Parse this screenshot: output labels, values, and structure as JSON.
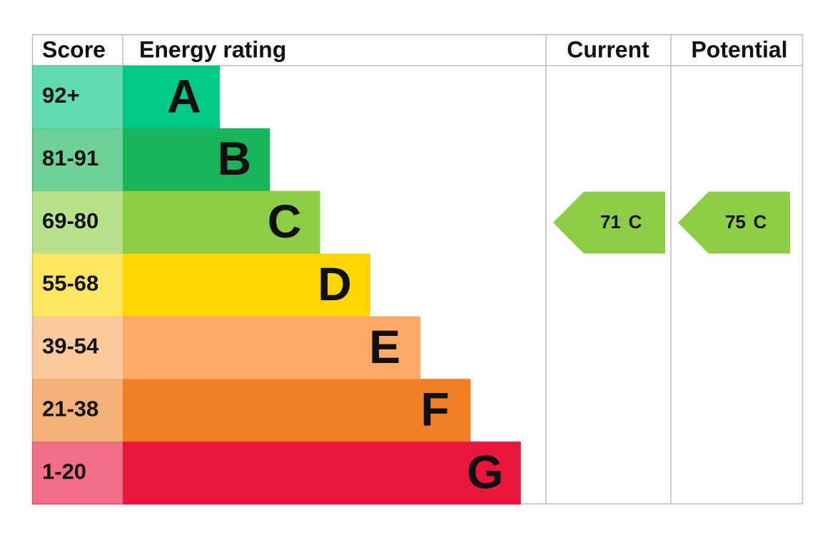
{
  "header": {
    "score": "Score",
    "energy_rating": "Energy rating",
    "current": "Current",
    "potential": "Potential"
  },
  "rows": [
    {
      "score": "92+",
      "rating": "A",
      "color": "#00c781"
    },
    {
      "score": "81-91",
      "rating": "B",
      "color": "#19b459"
    },
    {
      "score": "69-80",
      "rating": "C",
      "color": "#8dce46"
    },
    {
      "score": "55-68",
      "rating": "D",
      "color": "#ffd500"
    },
    {
      "score": "39-54",
      "rating": "E",
      "color": "#fcaa65"
    },
    {
      "score": "21-38",
      "rating": "F",
      "color": "#ef8023"
    },
    {
      "score": "1-20",
      "rating": "G",
      "color": "#e9153b"
    }
  ],
  "current": {
    "score": 71,
    "rating": "C"
  },
  "potential": {
    "score": 75,
    "rating": "C"
  }
}
